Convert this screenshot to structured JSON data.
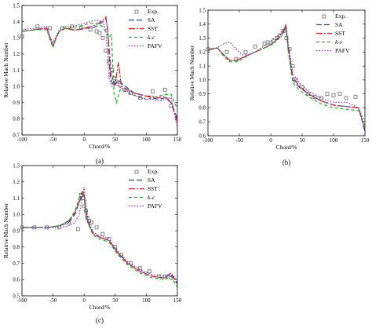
{
  "chart_data": [
    {
      "type": "line",
      "caption": "(a)",
      "xlabel": "Chord/%",
      "ylabel": "Relative Mach Number",
      "xlim": [
        -100,
        150
      ],
      "ylim": [
        0.7,
        1.5
      ],
      "xticks": [
        "-100",
        "-50",
        "0",
        "50",
        "100",
        "150"
      ],
      "yticks": [
        "0.7",
        "0.8",
        "0.9",
        "1.0",
        "1.1",
        "1.2",
        "1.3",
        "1.4",
        "1.5"
      ],
      "legend": "top-right",
      "scatter": {
        "name": "Exp.",
        "x": [
          -100,
          -75,
          -55,
          -35,
          -20,
          -5,
          10,
          20,
          25,
          30,
          35,
          40,
          45,
          48,
          52,
          58,
          65,
          75,
          90,
          110,
          130,
          140
        ],
        "y": [
          1.31,
          1.37,
          1.36,
          1.36,
          1.37,
          1.36,
          1.35,
          1.34,
          1.33,
          1.3,
          1.22,
          1.15,
          1.1,
          1.05,
          1.03,
          1.01,
          0.98,
          0.96,
          0.93,
          0.97,
          0.98,
          0.88
        ]
      },
      "series": [
        {
          "name": "SA",
          "color": "#1f3fbf",
          "dash": "7,3",
          "x": [
            -100,
            -80,
            -60,
            -55,
            -50,
            -45,
            -40,
            -30,
            -20,
            -10,
            0,
            10,
            20,
            30,
            35,
            38,
            42,
            48,
            55,
            60,
            70,
            80,
            90,
            100,
            110,
            120,
            130,
            140,
            150
          ],
          "y": [
            1.34,
            1.35,
            1.36,
            1.3,
            1.25,
            1.3,
            1.34,
            1.36,
            1.35,
            1.35,
            1.36,
            1.36,
            1.37,
            1.4,
            1.42,
            1.35,
            1.05,
            1.0,
            1.04,
            1.02,
            0.99,
            0.96,
            0.95,
            0.94,
            0.93,
            0.92,
            0.93,
            0.9,
            0.8
          ]
        },
        {
          "name": "SST",
          "color": "#e02020",
          "dash": "8,2,2,2",
          "x": [
            -100,
            -80,
            -60,
            -55,
            -50,
            -45,
            -40,
            -30,
            -20,
            -10,
            0,
            10,
            20,
            30,
            35,
            38,
            44,
            50,
            55,
            60,
            70,
            80,
            90,
            100,
            110,
            120,
            130,
            140,
            150
          ],
          "y": [
            1.34,
            1.35,
            1.36,
            1.3,
            1.25,
            1.3,
            1.34,
            1.36,
            1.35,
            1.35,
            1.36,
            1.37,
            1.38,
            1.41,
            1.43,
            1.34,
            1.06,
            1.01,
            1.15,
            1.0,
            0.98,
            0.96,
            0.95,
            0.94,
            0.94,
            0.93,
            0.94,
            0.9,
            0.78
          ]
        },
        {
          "name": "k-ε",
          "color": "#1aaf1a",
          "dash": "4,3",
          "x": [
            -100,
            -80,
            -60,
            -55,
            -50,
            -45,
            -40,
            -30,
            -20,
            -10,
            0,
            10,
            20,
            30,
            40,
            44,
            48,
            52,
            58,
            65,
            75,
            85,
            100,
            110,
            120,
            130,
            140,
            150
          ],
          "y": [
            1.34,
            1.35,
            1.35,
            1.29,
            1.24,
            1.3,
            1.34,
            1.36,
            1.36,
            1.37,
            1.38,
            1.39,
            1.39,
            1.37,
            1.3,
            1.32,
            0.96,
            0.9,
            0.98,
            0.97,
            0.95,
            0.94,
            0.92,
            0.93,
            0.94,
            0.95,
            0.95,
            0.86
          ]
        },
        {
          "name": "PAFV",
          "color": "#a020c0",
          "dash": "1.5,2",
          "x": [
            -100,
            -80,
            -60,
            -55,
            -50,
            -45,
            -40,
            -30,
            -20,
            -10,
            0,
            10,
            20,
            30,
            35,
            40,
            45,
            50,
            55,
            60,
            70,
            80,
            90,
            100,
            110,
            120,
            130,
            140,
            150
          ],
          "y": [
            1.35,
            1.36,
            1.37,
            1.31,
            1.27,
            1.31,
            1.35,
            1.37,
            1.37,
            1.38,
            1.39,
            1.4,
            1.41,
            1.4,
            1.35,
            1.05,
            1.0,
            1.02,
            1.0,
            0.99,
            0.97,
            0.95,
            0.93,
            0.92,
            0.92,
            0.91,
            0.92,
            0.93,
            0.74
          ]
        }
      ]
    },
    {
      "type": "line",
      "caption": "(b)",
      "xlabel": "Chord/%",
      "ylabel": "Relative Mach Number",
      "xlim": [
        -100,
        150
      ],
      "ylim": [
        0.6,
        1.5
      ],
      "xticks": [
        "-100",
        "-50",
        "0",
        "50",
        "100",
        "150"
      ],
      "yticks": [
        "0.6",
        "0.7",
        "0.8",
        "0.9",
        "1.0",
        "1.1",
        "1.2",
        "1.3",
        "1.4",
        "1.5"
      ],
      "legend": "top-right",
      "scatter": {
        "name": "Exp.",
        "x": [
          -100,
          -70,
          -55,
          -40,
          -25,
          -10,
          -5,
          0,
          5,
          10,
          15,
          20,
          25,
          30,
          35,
          40,
          50,
          60,
          70,
          80,
          90,
          100,
          110,
          120,
          135
        ],
        "y": [
          1.22,
          1.2,
          1.15,
          1.2,
          1.24,
          1.26,
          1.27,
          1.26,
          1.28,
          1.3,
          1.32,
          1.35,
          1.3,
          1.22,
          1.1,
          1.0,
          0.95,
          0.9,
          0.88,
          0.87,
          0.9,
          0.89,
          0.9,
          0.87,
          0.88
        ]
      },
      "series": [
        {
          "name": "SA",
          "color": "#1f3fbf",
          "dash": "7,3",
          "x": [
            -100,
            -85,
            -75,
            -65,
            -55,
            -45,
            -35,
            -25,
            -15,
            -5,
            5,
            15,
            20,
            24,
            28,
            35,
            45,
            60,
            80,
            100,
            120,
            140,
            150
          ],
          "y": [
            1.22,
            1.23,
            1.18,
            1.14,
            1.14,
            1.16,
            1.18,
            1.2,
            1.22,
            1.24,
            1.27,
            1.31,
            1.34,
            1.39,
            1.22,
            1.0,
            0.95,
            0.9,
            0.85,
            0.82,
            0.81,
            0.8,
            0.63
          ]
        },
        {
          "name": "SST",
          "color": "#e02020",
          "dash": "8,2,2,2",
          "x": [
            -100,
            -85,
            -75,
            -65,
            -55,
            -45,
            -35,
            -25,
            -15,
            -5,
            5,
            15,
            20,
            24,
            28,
            35,
            45,
            60,
            80,
            100,
            120,
            140,
            150
          ],
          "y": [
            1.22,
            1.23,
            1.18,
            1.14,
            1.14,
            1.16,
            1.18,
            1.2,
            1.22,
            1.24,
            1.27,
            1.32,
            1.35,
            1.4,
            1.24,
            1.02,
            0.96,
            0.9,
            0.85,
            0.82,
            0.81,
            0.8,
            0.65
          ]
        },
        {
          "name": "k-ε",
          "color": "#1aaf1a",
          "dash": "4,3",
          "x": [
            -100,
            -85,
            -75,
            -65,
            -55,
            -45,
            -35,
            -25,
            -15,
            -5,
            5,
            15,
            20,
            24,
            28,
            35,
            45,
            60,
            80,
            100,
            120,
            140,
            150
          ],
          "y": [
            1.22,
            1.23,
            1.17,
            1.13,
            1.13,
            1.15,
            1.18,
            1.2,
            1.22,
            1.24,
            1.27,
            1.31,
            1.34,
            1.38,
            1.2,
            0.98,
            0.93,
            0.88,
            0.83,
            0.8,
            0.79,
            0.78,
            0.66
          ]
        },
        {
          "name": "PAFV",
          "color": "#a020c0",
          "dash": "1.5,2",
          "x": [
            -100,
            -85,
            -75,
            -65,
            -55,
            -45,
            -35,
            -25,
            -15,
            -5,
            5,
            15,
            20,
            24,
            28,
            35,
            45,
            60,
            80,
            100,
            120,
            140,
            150
          ],
          "y": [
            1.21,
            1.23,
            1.26,
            1.27,
            1.22,
            1.18,
            1.18,
            1.2,
            1.23,
            1.26,
            1.3,
            1.33,
            1.36,
            1.38,
            1.26,
            1.05,
            0.98,
            0.92,
            0.87,
            0.84,
            0.84,
            0.8,
            0.68
          ]
        }
      ]
    },
    {
      "type": "line",
      "caption": "(c)",
      "xlabel": "Chord/%",
      "ylabel": "Relative Mach Number",
      "xlim": [
        -100,
        150
      ],
      "ylim": [
        0.5,
        1.3
      ],
      "xticks": [
        "-100",
        "-50",
        "0",
        "50",
        "100",
        "150"
      ],
      "yticks": [
        "0.5",
        "0.6",
        "0.7",
        "0.8",
        "0.9",
        "1.0",
        "1.1",
        "1.2",
        "1.3"
      ],
      "legend": "top-right",
      "scatter": {
        "name": "Exp.",
        "x": [
          -100,
          -80,
          -60,
          -40,
          -25,
          -10,
          -5,
          -2,
          0,
          3,
          5,
          8,
          12,
          20,
          30,
          40,
          50,
          60,
          75,
          90,
          105,
          120,
          130,
          140
        ],
        "y": [
          0.92,
          0.92,
          0.92,
          0.92,
          0.95,
          0.91,
          1.12,
          1.1,
          1.05,
          1.02,
          0.98,
          0.96,
          0.95,
          0.92,
          0.88,
          0.85,
          0.8,
          0.75,
          0.7,
          0.67,
          0.65,
          0.62,
          0.62,
          0.61
        ]
      },
      "series": [
        {
          "name": "SA",
          "color": "#1f3fbf",
          "dash": "7,3",
          "x": [
            -100,
            -80,
            -60,
            -40,
            -25,
            -15,
            -8,
            -3,
            0,
            3,
            6,
            10,
            15,
            25,
            40,
            55,
            70,
            90,
            110,
            130,
            140,
            150
          ],
          "y": [
            0.92,
            0.92,
            0.92,
            0.93,
            0.95,
            1.0,
            1.07,
            1.13,
            1.12,
            1.0,
            0.95,
            0.92,
            0.88,
            0.86,
            0.84,
            0.76,
            0.7,
            0.65,
            0.62,
            0.61,
            0.64,
            0.57
          ]
        },
        {
          "name": "SST",
          "color": "#e02020",
          "dash": "8,2,2,2",
          "x": [
            -100,
            -80,
            -60,
            -40,
            -25,
            -15,
            -8,
            -3,
            0,
            3,
            6,
            10,
            15,
            25,
            40,
            55,
            70,
            90,
            110,
            130,
            140,
            150
          ],
          "y": [
            0.92,
            0.92,
            0.92,
            0.93,
            0.96,
            1.01,
            1.08,
            1.14,
            1.13,
            1.01,
            0.96,
            0.92,
            0.88,
            0.86,
            0.84,
            0.76,
            0.7,
            0.65,
            0.62,
            0.61,
            0.63,
            0.58
          ]
        },
        {
          "name": "k-ε",
          "color": "#1aaf1a",
          "dash": "4,3",
          "x": [
            -100,
            -80,
            -60,
            -40,
            -25,
            -15,
            -8,
            -3,
            0,
            3,
            6,
            10,
            15,
            25,
            40,
            55,
            70,
            90,
            110,
            130,
            140,
            150
          ],
          "y": [
            0.92,
            0.92,
            0.92,
            0.93,
            0.96,
            1.02,
            1.1,
            1.14,
            1.1,
            0.99,
            0.95,
            0.91,
            0.87,
            0.85,
            0.83,
            0.75,
            0.69,
            0.64,
            0.61,
            0.6,
            0.62,
            0.55
          ]
        },
        {
          "name": "PAFV",
          "color": "#a020c0",
          "dash": "1.5,2",
          "x": [
            -100,
            -80,
            -60,
            -40,
            -25,
            -15,
            -8,
            -3,
            0,
            3,
            6,
            10,
            15,
            25,
            40,
            55,
            70,
            90,
            110,
            130,
            140,
            150
          ],
          "y": [
            0.92,
            0.92,
            0.92,
            0.92,
            0.93,
            0.95,
            1.0,
            1.1,
            1.17,
            1.05,
            0.97,
            0.93,
            0.89,
            0.87,
            0.85,
            0.77,
            0.71,
            0.66,
            0.63,
            0.62,
            0.64,
            0.59
          ]
        }
      ]
    }
  ]
}
